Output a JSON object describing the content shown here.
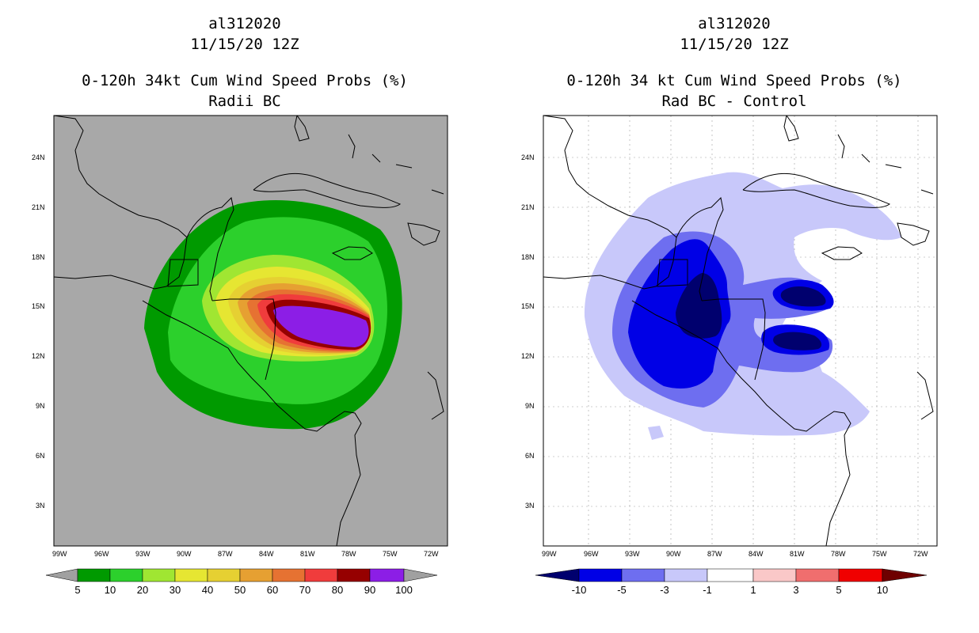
{
  "panels": [
    {
      "storm": "al312020",
      "date": "11/15/20 12Z",
      "title": "0-120h 34kt Cum Wind Speed Probs (%)",
      "subtitle": "Radii BC",
      "background": "#a8a8a8",
      "lat_labels": [
        "24N",
        "21N",
        "18N",
        "15N",
        "12N",
        "9N",
        "6N",
        "3N"
      ],
      "lon_labels": [
        "99W",
        "96W",
        "93W",
        "90W",
        "87W",
        "84W",
        "81W",
        "78W",
        "75W",
        "72W"
      ],
      "colorbar": {
        "labels": [
          "5",
          "10",
          "20",
          "30",
          "40",
          "50",
          "60",
          "70",
          "80",
          "90",
          "100"
        ],
        "colors": [
          "#a0a0a0",
          "#009a00",
          "#2cd02c",
          "#a0e632",
          "#e6e632",
          "#e6d032",
          "#e6a032",
          "#e67232",
          "#f03c3c",
          "#960000",
          "#8c1ee6",
          "#a0a0a0"
        ]
      }
    },
    {
      "storm": "al312020",
      "date": "11/15/20 12Z",
      "title": "0-120h 34 kt Cum Wind Speed Probs (%)",
      "subtitle": "Rad BC - Control",
      "background": "#ffffff",
      "lat_labels": [
        "24N",
        "21N",
        "18N",
        "15N",
        "12N",
        "9N",
        "6N",
        "3N"
      ],
      "lon_labels": [
        "99W",
        "96W",
        "93W",
        "90W",
        "87W",
        "84W",
        "81W",
        "78W",
        "75W",
        "72W"
      ],
      "colorbar": {
        "labels": [
          "-10",
          "-5",
          "-3",
          "-1",
          "1",
          "3",
          "5",
          "10"
        ],
        "colors": [
          "#00006e",
          "#0000e6",
          "#6e6ef0",
          "#c8c8fa",
          "#ffffff",
          "#fac8c8",
          "#f06e6e",
          "#f00000",
          "#6e0000"
        ]
      }
    }
  ]
}
